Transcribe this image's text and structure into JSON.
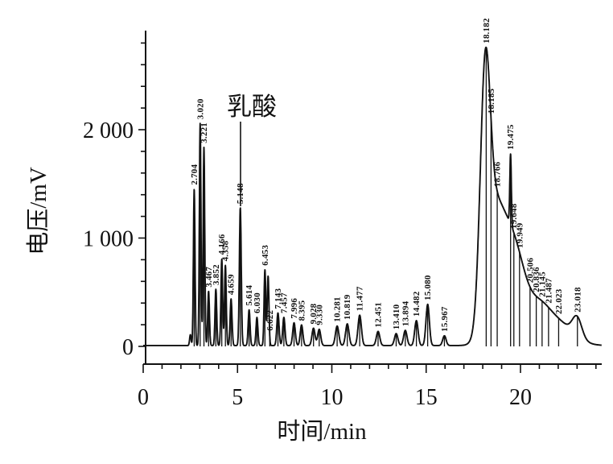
{
  "chart_data": {
    "type": "line",
    "title": "",
    "xlabel": "时间/min",
    "ylabel": "电压/mV",
    "x_unit": "min",
    "y_unit": "mV",
    "xlim": [
      0,
      24.3
    ],
    "ylim": [
      0,
      2900
    ],
    "x_ticks": [
      0,
      5,
      10,
      15,
      20
    ],
    "x_tick_labels": [
      "0",
      "5",
      "10",
      "15",
      "20"
    ],
    "x_minor_tick_step": 1,
    "y_ticks": [
      0,
      1000,
      2000
    ],
    "y_tick_labels": [
      "0",
      "1 000",
      "2 000"
    ],
    "y_minor_tick_step": 200,
    "grid": false,
    "legend": null,
    "annotation": {
      "text": "乳酸",
      "target_peak_time": 5.148
    },
    "peaks": [
      {
        "t": 2.704,
        "label": "2.704",
        "mv": 1445
      },
      {
        "t": 3.02,
        "label": "3.020",
        "mv": 2050
      },
      {
        "t": 3.221,
        "label": "3.221",
        "mv": 1830
      },
      {
        "t": 3.467,
        "label": "3.467",
        "mv": 500
      },
      {
        "t": 3.852,
        "label": "3.852",
        "mv": 520
      },
      {
        "t": 4.166,
        "label": "4.166",
        "mv": 800
      },
      {
        "t": 4.358,
        "label": "4.358",
        "mv": 740
      },
      {
        "t": 4.659,
        "label": "4.659",
        "mv": 430
      },
      {
        "t": 5.148,
        "label": "5.148",
        "mv": 1270
      },
      {
        "t": 5.614,
        "label": "5.614",
        "mv": 330
      },
      {
        "t": 6.03,
        "label": "6.030",
        "mv": 260
      },
      {
        "t": 6.453,
        "label": "6.453",
        "mv": 700
      },
      {
        "t": 6.622,
        "label": "6.622",
        "mv": 640
      },
      {
        "t": 7.143,
        "label": "7.143",
        "mv": 300
      },
      {
        "t": 7.457,
        "label": "7.457",
        "mv": 260
      },
      {
        "t": 7.996,
        "label": "7.996",
        "mv": 210
      },
      {
        "t": 8.395,
        "label": "8.395",
        "mv": 190
      },
      {
        "t": 9.028,
        "label": "9.028",
        "mv": 160
      },
      {
        "t": 9.33,
        "label": "9.330",
        "mv": 150
      },
      {
        "t": 10.281,
        "label": "10.281",
        "mv": 180
      },
      {
        "t": 10.819,
        "label": "10.819",
        "mv": 200
      },
      {
        "t": 11.477,
        "label": "11.477",
        "mv": 280
      },
      {
        "t": 12.451,
        "label": "12.451",
        "mv": 130
      },
      {
        "t": 13.41,
        "label": "13.410",
        "mv": 110
      },
      {
        "t": 13.894,
        "label": "13.894",
        "mv": 140
      },
      {
        "t": 14.482,
        "label": "14.482",
        "mv": 230
      },
      {
        "t": 15.08,
        "label": "15.080",
        "mv": 380
      },
      {
        "t": 15.967,
        "label": "15.967",
        "mv": 90
      },
      {
        "t": 18.182,
        "label": "18.182",
        "mv": 2620
      },
      {
        "t": 18.185,
        "label": "18.185",
        "mv": 2560
      },
      {
        "t": 18.766,
        "label": "18.766",
        "mv": 1600
      },
      {
        "t": 19.475,
        "label": "19.475",
        "mv": 1780
      },
      {
        "t": 19.648,
        "label": "19.648",
        "mv": 1040
      },
      {
        "t": 19.949,
        "label": "19.949",
        "mv": 860
      },
      {
        "t": 20.506,
        "label": "20.506",
        "mv": 550
      },
      {
        "t": 20.836,
        "label": "20.836",
        "mv": 460
      },
      {
        "t": 21.145,
        "label": "21.145",
        "mv": 420
      },
      {
        "t": 21.487,
        "label": "21.487",
        "mv": 360
      },
      {
        "t": 22.023,
        "label": "22.023",
        "mv": 270
      },
      {
        "t": 23.018,
        "label": "23.018",
        "mv": 280
      }
    ],
    "curve_model": {
      "baseline_mv": 8,
      "gaussians": [
        [
          2.5,
          100,
          0.04
        ],
        [
          2.704,
          1445,
          0.042
        ],
        [
          3.02,
          2050,
          0.042
        ],
        [
          3.221,
          1830,
          0.042
        ],
        [
          3.467,
          500,
          0.045
        ],
        [
          3.852,
          520,
          0.045
        ],
        [
          4.166,
          800,
          0.045
        ],
        [
          4.358,
          740,
          0.045
        ],
        [
          4.659,
          430,
          0.05
        ],
        [
          5.148,
          1270,
          0.05
        ],
        [
          5.614,
          330,
          0.05
        ],
        [
          6.03,
          260,
          0.05
        ],
        [
          6.453,
          700,
          0.045
        ],
        [
          6.622,
          640,
          0.045
        ],
        [
          7.143,
          300,
          0.06
        ],
        [
          7.457,
          260,
          0.06
        ],
        [
          7.996,
          210,
          0.07
        ],
        [
          8.395,
          190,
          0.07
        ],
        [
          9.028,
          160,
          0.08
        ],
        [
          9.33,
          150,
          0.08
        ],
        [
          10.281,
          180,
          0.09
        ],
        [
          10.819,
          200,
          0.09
        ],
        [
          11.477,
          280,
          0.09
        ],
        [
          12.451,
          130,
          0.09
        ],
        [
          13.41,
          110,
          0.09
        ],
        [
          13.894,
          140,
          0.09
        ],
        [
          14.482,
          230,
          0.09
        ],
        [
          15.08,
          380,
          0.09
        ],
        [
          15.967,
          90,
          0.09
        ],
        [
          18.12,
          2000,
          0.26
        ],
        [
          18.5,
          850,
          0.45
        ],
        [
          19.2,
          800,
          0.55
        ],
        [
          19.475,
          650,
          0.04
        ],
        [
          19.9,
          450,
          0.5
        ],
        [
          20.9,
          300,
          0.6
        ],
        [
          22.0,
          200,
          0.8
        ],
        [
          23.0,
          180,
          0.25
        ]
      ]
    },
    "colors": {
      "trace": "#111111",
      "axis": "#111111",
      "text": "#111111",
      "background": "#ffffff"
    }
  }
}
